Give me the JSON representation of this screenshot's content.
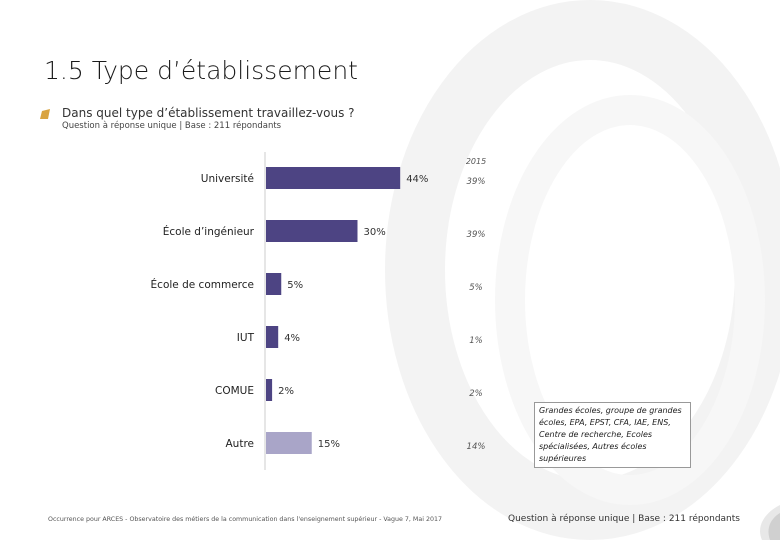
{
  "page": {
    "title": "1.5 Type d’établissement",
    "question": "Dans quel type d’établissement travaillez-vous ?",
    "base": "Question à réponse unique | Base : 211 répondants",
    "note": "Grandes écoles, groupe de grandes écoles, EPA, EPST, CFA, IAE, ENS, Centre de recherche, Ecoles spécialisées, Autres écoles supérieures",
    "footer_left": "Occurrence pour ARCES - Observatoire des métiers de la communication dans l'enseignement supérieur - Vague 7, Mai 2017",
    "footer_right": "Question à réponse unique | Base : 211 répondants"
  },
  "chart_data": {
    "type": "bar",
    "orientation": "horizontal",
    "categories": [
      "Université",
      "École d’ingénieur",
      "École de commerce",
      "IUT",
      "COMUE",
      "Autre"
    ],
    "values": [
      44,
      30,
      5,
      4,
      2,
      15
    ],
    "value_labels": [
      "44%",
      "30%",
      "5%",
      "4%",
      "2%",
      "15%"
    ],
    "comparison_header": "2015",
    "comparison_labels": [
      "39%",
      "39%",
      "5%",
      "1%",
      "2%",
      "14%"
    ],
    "xlim": [
      0,
      100
    ],
    "colors": {
      "bar": "#4d4483",
      "bar_other": "#a9a5c8",
      "label": "#333333"
    }
  }
}
